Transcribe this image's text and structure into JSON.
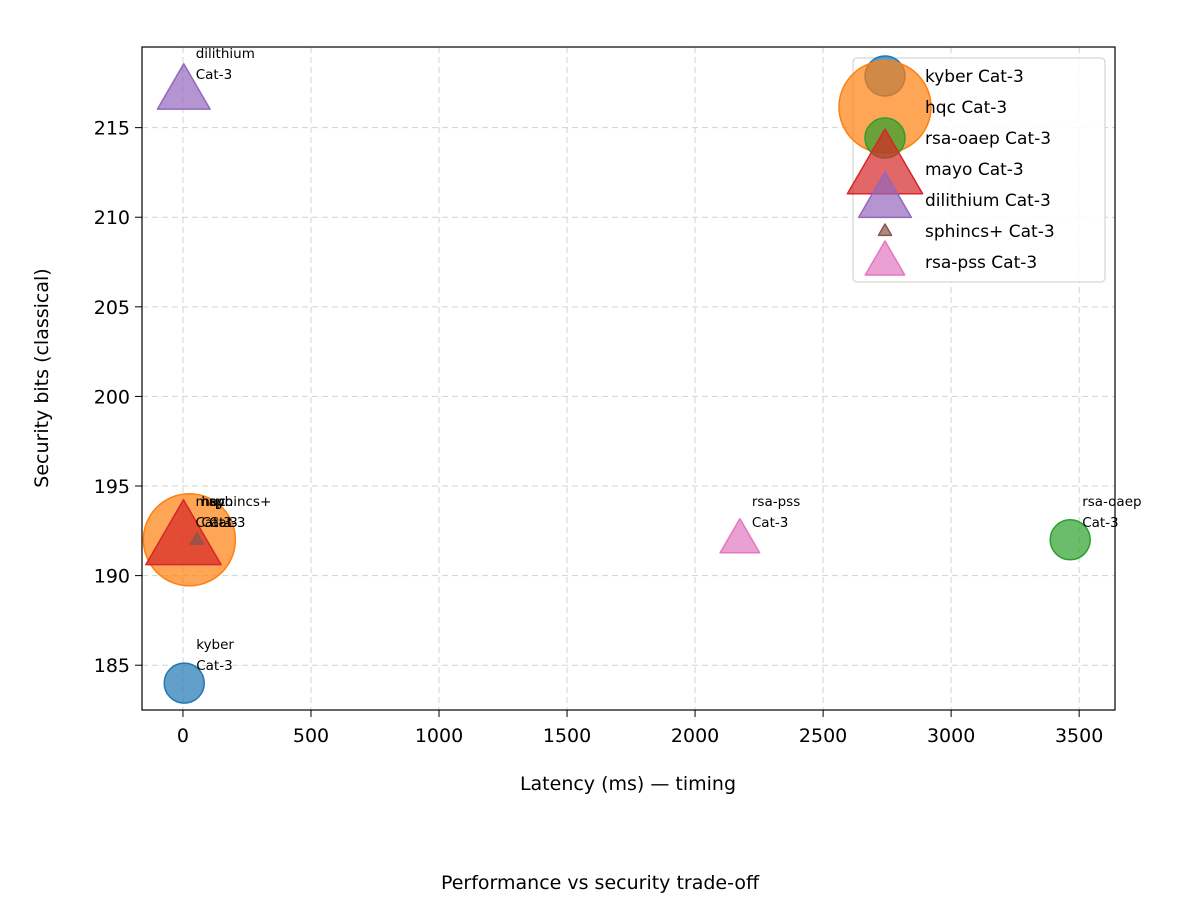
{
  "chart_data": {
    "type": "scatter",
    "xlabel": "Latency (ms) — timing",
    "ylabel": "Security bits (classical)",
    "caption": "Performance vs security trade-off",
    "xlim": [
      -160,
      3640
    ],
    "ylim": [
      182.5,
      219.5
    ],
    "x_ticks": [
      0,
      500,
      1000,
      1500,
      2000,
      2500,
      3000,
      3500
    ],
    "y_ticks": [
      185,
      190,
      195,
      200,
      205,
      210,
      215
    ],
    "grid": true,
    "legend_position": "top-right",
    "series": [
      {
        "name": "kyber Cat-3",
        "label_lines": [
          "kyber",
          "Cat-3"
        ],
        "x": 5,
        "y": 184,
        "marker": "circle",
        "size": "small",
        "color": "#1f77b4"
      },
      {
        "name": "hqc Cat-3",
        "label_lines": [
          "hqc",
          "Cat-3"
        ],
        "x": 25,
        "y": 192,
        "marker": "circle",
        "size": "large",
        "color": "#ff7f0e"
      },
      {
        "name": "rsa-oaep Cat-3",
        "label_lines": [
          "rsa-oaep",
          "Cat-3"
        ],
        "x": 3465,
        "y": 192,
        "marker": "circle",
        "size": "small",
        "color": "#2ca02c"
      },
      {
        "name": "mayo Cat-3",
        "label_lines": [
          "mayo",
          "Cat-3"
        ],
        "x": 2,
        "y": 192,
        "marker": "triangle",
        "size": "large",
        "color": "#d62728"
      },
      {
        "name": "dilithium Cat-3",
        "label_lines": [
          "dilithium",
          "Cat-3"
        ],
        "x": 3,
        "y": 217,
        "marker": "triangle",
        "size": "medium",
        "color": "#9467bd"
      },
      {
        "name": "sphincs+ Cat-3",
        "label_lines": [
          "sphincs+",
          "Cat-3"
        ],
        "x": 55,
        "y": 192,
        "marker": "triangle",
        "size": "tiny",
        "color": "#8c564b"
      },
      {
        "name": "rsa-pss Cat-3",
        "label_lines": [
          "rsa-pss",
          "Cat-3"
        ],
        "x": 2175,
        "y": 192,
        "marker": "triangle",
        "size": "small",
        "color": "#e377c2"
      }
    ]
  }
}
